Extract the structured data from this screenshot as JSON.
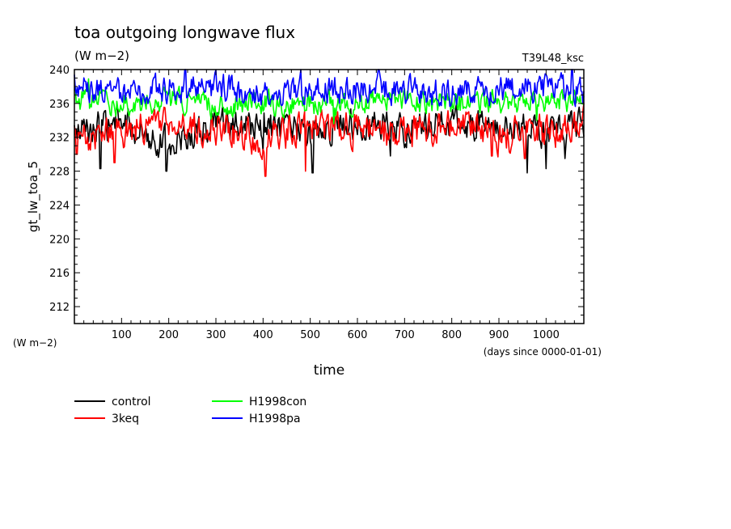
{
  "chart_data": {
    "type": "line",
    "title": "toa outgoing longwave flux",
    "subtitle": "(W m−2)",
    "run_label": "T39L48_ksc",
    "ylabel": "gt_lw_toa_5",
    "yunit": "(W m−2)",
    "xlabel": "time",
    "xunit": "(days since 0000-01-01)",
    "xlim": [
      0,
      1080
    ],
    "ylim": [
      210,
      240
    ],
    "xticks": [
      100,
      200,
      300,
      400,
      500,
      600,
      700,
      800,
      900,
      1000
    ],
    "yticks": [
      212,
      216,
      220,
      224,
      228,
      232,
      236,
      240
    ],
    "grid": false,
    "legend_position": "bottom-left",
    "series": [
      {
        "name": "control",
        "color": "#000000",
        "mean": 233.3,
        "amp": 1.6,
        "x": [
          0,
          100,
          200,
          300,
          400,
          500,
          600,
          700,
          800,
          900,
          1000,
          1080
        ],
        "values": [
          232.5,
          233.8,
          231.2,
          233.5,
          233.2,
          232.4,
          233.8,
          233.0,
          233.9,
          233.1,
          232.6,
          233.6
        ],
        "extremes": [
          [
            55,
            228.3
          ],
          [
            195,
            228.0
          ],
          [
            400,
            230.2
          ],
          [
            505,
            227.8
          ],
          [
            670,
            229.8
          ],
          [
            960,
            227.8
          ],
          [
            1000,
            228.3
          ],
          [
            1040,
            229.5
          ]
        ]
      },
      {
        "name": "3keq",
        "color": "#ff0000",
        "mean": 233.0,
        "amp": 1.7,
        "x": [
          0,
          100,
          200,
          300,
          400,
          500,
          600,
          700,
          800,
          900,
          1000,
          1080
        ],
        "values": [
          232.0,
          232.8,
          233.6,
          232.8,
          232.1,
          233.5,
          232.9,
          232.4,
          233.3,
          232.0,
          232.6,
          233.8
        ],
        "extremes": [
          [
            5,
            230.0
          ],
          [
            85,
            229.0
          ],
          [
            405,
            227.4
          ],
          [
            490,
            228.0
          ],
          [
            885,
            229.8
          ],
          [
            955,
            229.5
          ]
        ]
      },
      {
        "name": "H1998con",
        "color": "#00ff00",
        "mean": 236.3,
        "amp": 1.2,
        "x": [
          0,
          100,
          200,
          300,
          400,
          500,
          600,
          700,
          800,
          900,
          1000,
          1080
        ],
        "values": [
          236.5,
          236.0,
          236.4,
          235.8,
          236.2,
          235.7,
          236.3,
          236.6,
          235.9,
          236.1,
          236.4,
          236.0
        ],
        "extremes": [
          [
            30,
            238.9
          ],
          [
            550,
            233.6
          ],
          [
            980,
            234.0
          ]
        ]
      },
      {
        "name": "H1998pa",
        "color": "#0000ff",
        "mean": 237.6,
        "amp": 1.4,
        "x": [
          0,
          100,
          200,
          300,
          400,
          500,
          600,
          700,
          800,
          900,
          1000,
          1080
        ],
        "values": [
          238.0,
          237.2,
          237.6,
          237.9,
          237.3,
          237.4,
          237.8,
          237.5,
          237.1,
          237.7,
          237.9,
          237.3
        ],
        "extremes": [
          [
            235,
            240.4
          ],
          [
            480,
            240.2
          ],
          [
            645,
            240.7
          ],
          [
            1055,
            240.2
          ]
        ]
      }
    ]
  }
}
